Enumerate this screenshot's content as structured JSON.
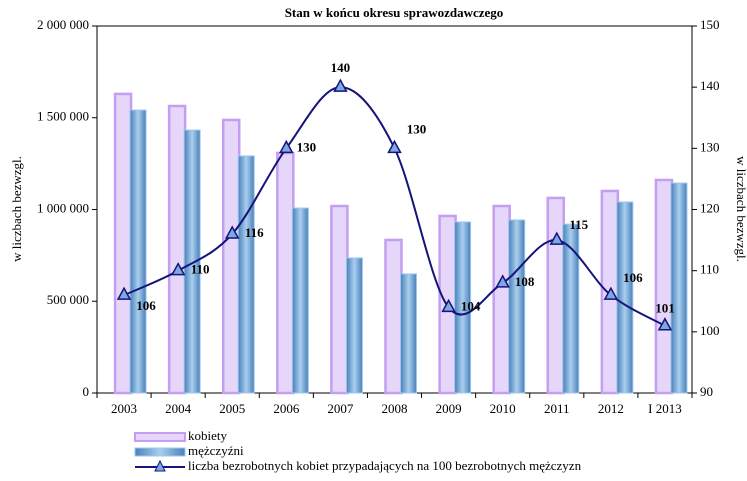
{
  "chart_data": {
    "type": "bar_line",
    "title": "Stan w końcu okresu sprawozdawczego",
    "y_label": "w liczbach bezwzgl.",
    "y2_label": "w liczbach bezwzgl.",
    "categories": [
      "2003",
      "2004",
      "2005",
      "2006",
      "2007",
      "2008",
      "2009",
      "2010",
      "2011",
      "2012",
      "I 2013"
    ],
    "series": [
      {
        "name": "kobiety",
        "type": "bar",
        "color": "#e6d6fa",
        "edge": "#c49ef0",
        "values": [
          1630000,
          1564000,
          1488000,
          1308000,
          1019000,
          834000,
          965000,
          1019000,
          1063000,
          1101000,
          1161000
        ]
      },
      {
        "name": "mężczyźni",
        "type": "bar",
        "color": "#6e9fd2",
        "edge": "#9cc8f0",
        "values": [
          1542000,
          1433000,
          1292000,
          1008000,
          736000,
          649000,
          932000,
          943000,
          920000,
          1041000,
          1144000
        ]
      },
      {
        "name": "liczba bezrobotnych kobiet przypadających na 100 bezrobotnych mężczyzn",
        "type": "line",
        "axis": "y2",
        "color": "#14147a",
        "values": [
          106,
          110,
          116,
          130,
          140,
          130,
          104,
          108,
          115,
          106,
          101
        ]
      }
    ],
    "ylim": [
      0,
      2000000
    ],
    "yticks": [
      0,
      {
        "value": 500000,
        "label": "500 000"
      },
      {
        "value": 1000000,
        "label": "1 000 000"
      },
      {
        "value": 1500000,
        "label": "1 500 000"
      },
      {
        "value": 2000000,
        "label": "2 000 000"
      }
    ],
    "y2lim": [
      90,
      150
    ],
    "y2ticks": [
      90,
      100,
      110,
      120,
      130,
      140,
      150
    ],
    "legend": "bottom-left"
  }
}
